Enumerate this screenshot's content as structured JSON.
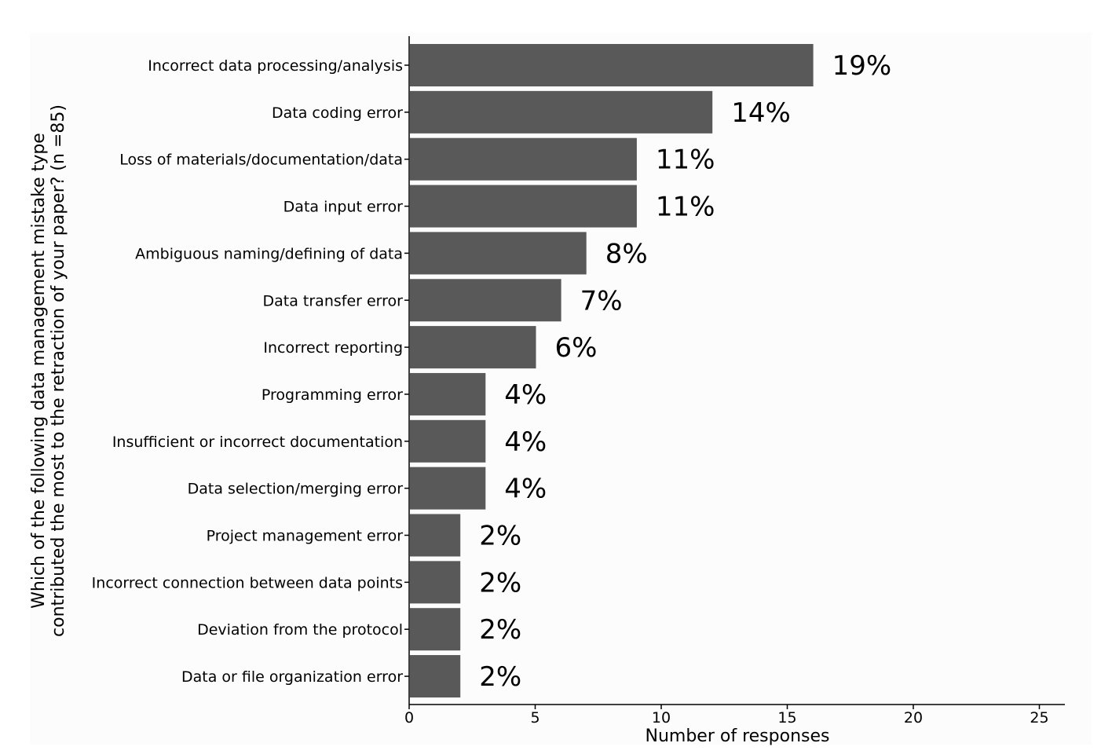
{
  "chart_data": {
    "type": "bar",
    "orientation": "horizontal",
    "categories": [
      "Incorrect data processing/analysis",
      "Data coding error",
      "Loss of materials/documentation/data",
      "Data input error",
      "Ambiguous naming/defining of data",
      "Data transfer error",
      "Incorrect reporting",
      "Programming error",
      "Insufficient or incorrect documentation",
      "Data selection/merging error",
      "Project management error",
      "Incorrect connection between data points",
      "Deviation from the protocol",
      "Data or file organization error"
    ],
    "values": [
      16,
      12,
      9,
      9,
      7,
      6,
      5,
      3,
      3,
      3,
      2,
      2,
      2,
      2
    ],
    "data_labels": [
      "19%",
      "14%",
      "11%",
      "11%",
      "8%",
      "7%",
      "6%",
      "4%",
      "4%",
      "4%",
      "2%",
      "2%",
      "2%",
      "2%"
    ],
    "xlabel": "Number of responses",
    "ylabel_lines": [
      "Which of the following data management mistake type",
      "contributed the most to the retraction of your paper? (n =85)"
    ],
    "xlim": [
      0,
      26
    ],
    "xticks": [
      0,
      5,
      10,
      15,
      20,
      25
    ],
    "grid": false,
    "legend": "none",
    "colors": {
      "bar": "#595959",
      "plot_background": "#fcfcfc",
      "axis": "#000000",
      "text": "#000000"
    }
  }
}
